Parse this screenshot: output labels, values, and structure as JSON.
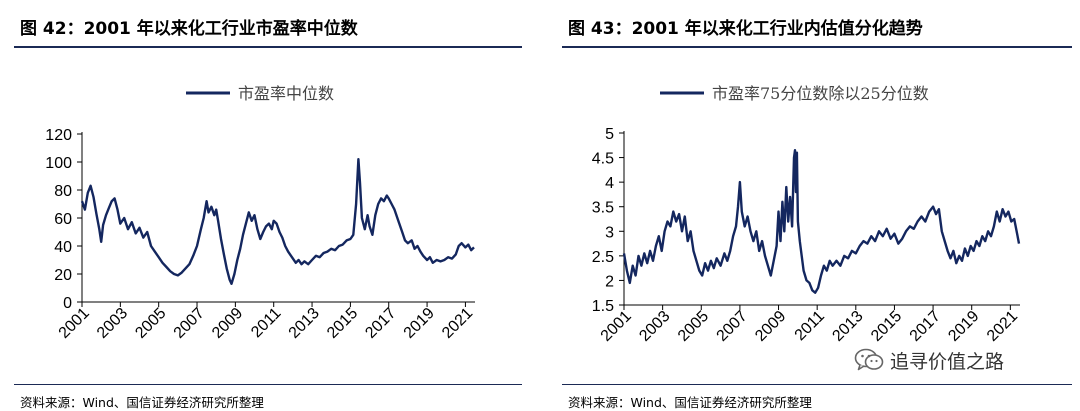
{
  "colors": {
    "series": "#14275f",
    "axis": "#000000",
    "rule": "#1b2a55"
  },
  "watermark": {
    "text": "追寻价值之路",
    "icon": "wechat-icon"
  },
  "chart_data": [
    {
      "type": "line",
      "title": "图 42：2001 年以来化工行业市盈率中位数",
      "source": "资料来源：Wind、国信证券经济研究所整理",
      "xlabel": "",
      "ylabel": "",
      "legend": "top-center",
      "grid": false,
      "xlim": [
        2001,
        2021.5
      ],
      "x_ticks": [
        "2001",
        "2003",
        "2005",
        "2007",
        "2009",
        "2011",
        "2013",
        "2015",
        "2017",
        "2019",
        "2021"
      ],
      "ylim": [
        0,
        120
      ],
      "y_ticks": [
        "0",
        "20",
        "40",
        "60",
        "80",
        "100",
        "120"
      ],
      "series": [
        {
          "name": "市盈率中位数",
          "points": [
            [
              2001.0,
              72
            ],
            [
              2001.15,
              66
            ],
            [
              2001.3,
              78
            ],
            [
              2001.45,
              83
            ],
            [
              2001.6,
              75
            ],
            [
              2001.75,
              63
            ],
            [
              2001.9,
              52
            ],
            [
              2002.0,
              43
            ],
            [
              2002.1,
              55
            ],
            [
              2002.25,
              62
            ],
            [
              2002.4,
              67
            ],
            [
              2002.55,
              72
            ],
            [
              2002.7,
              74
            ],
            [
              2002.85,
              66
            ],
            [
              2003.0,
              56
            ],
            [
              2003.2,
              60
            ],
            [
              2003.4,
              52
            ],
            [
              2003.6,
              57
            ],
            [
              2003.8,
              49
            ],
            [
              2004.0,
              53
            ],
            [
              2004.2,
              46
            ],
            [
              2004.4,
              50
            ],
            [
              2004.6,
              40
            ],
            [
              2004.8,
              36
            ],
            [
              2005.0,
              32
            ],
            [
              2005.2,
              28
            ],
            [
              2005.4,
              25
            ],
            [
              2005.6,
              22
            ],
            [
              2005.8,
              20
            ],
            [
              2006.0,
              19
            ],
            [
              2006.2,
              21
            ],
            [
              2006.4,
              24
            ],
            [
              2006.6,
              27
            ],
            [
              2006.8,
              33
            ],
            [
              2007.0,
              40
            ],
            [
              2007.2,
              52
            ],
            [
              2007.35,
              60
            ],
            [
              2007.5,
              72
            ],
            [
              2007.6,
              64
            ],
            [
              2007.75,
              68
            ],
            [
              2007.9,
              62
            ],
            [
              2008.0,
              66
            ],
            [
              2008.1,
              58
            ],
            [
              2008.25,
              45
            ],
            [
              2008.4,
              34
            ],
            [
              2008.55,
              24
            ],
            [
              2008.7,
              16
            ],
            [
              2008.8,
              13
            ],
            [
              2008.95,
              20
            ],
            [
              2009.1,
              30
            ],
            [
              2009.25,
              38
            ],
            [
              2009.4,
              48
            ],
            [
              2009.55,
              56
            ],
            [
              2009.7,
              64
            ],
            [
              2009.85,
              58
            ],
            [
              2010.0,
              62
            ],
            [
              2010.15,
              52
            ],
            [
              2010.3,
              45
            ],
            [
              2010.45,
              50
            ],
            [
              2010.6,
              54
            ],
            [
              2010.75,
              56
            ],
            [
              2010.9,
              52
            ],
            [
              2011.0,
              58
            ],
            [
              2011.15,
              56
            ],
            [
              2011.3,
              50
            ],
            [
              2011.45,
              46
            ],
            [
              2011.6,
              40
            ],
            [
              2011.75,
              36
            ],
            [
              2011.9,
              33
            ],
            [
              2012.0,
              31
            ],
            [
              2012.15,
              28
            ],
            [
              2012.3,
              30
            ],
            [
              2012.45,
              27
            ],
            [
              2012.6,
              29
            ],
            [
              2012.8,
              27
            ],
            [
              2013.0,
              30
            ],
            [
              2013.2,
              33
            ],
            [
              2013.4,
              32
            ],
            [
              2013.6,
              35
            ],
            [
              2013.8,
              36
            ],
            [
              2014.0,
              38
            ],
            [
              2014.2,
              37
            ],
            [
              2014.4,
              40
            ],
            [
              2014.6,
              41
            ],
            [
              2014.8,
              44
            ],
            [
              2015.0,
              45
            ],
            [
              2015.15,
              48
            ],
            [
              2015.3,
              70
            ],
            [
              2015.42,
              102
            ],
            [
              2015.5,
              85
            ],
            [
              2015.6,
              60
            ],
            [
              2015.75,
              52
            ],
            [
              2015.9,
              62
            ],
            [
              2016.0,
              54
            ],
            [
              2016.15,
              48
            ],
            [
              2016.3,
              62
            ],
            [
              2016.45,
              70
            ],
            [
              2016.6,
              74
            ],
            [
              2016.75,
              72
            ],
            [
              2016.9,
              76
            ],
            [
              2017.0,
              74
            ],
            [
              2017.15,
              70
            ],
            [
              2017.3,
              66
            ],
            [
              2017.5,
              58
            ],
            [
              2017.7,
              50
            ],
            [
              2017.85,
              44
            ],
            [
              2018.0,
              42
            ],
            [
              2018.2,
              44
            ],
            [
              2018.35,
              38
            ],
            [
              2018.5,
              40
            ],
            [
              2018.65,
              36
            ],
            [
              2018.8,
              33
            ],
            [
              2019.0,
              30
            ],
            [
              2019.15,
              32
            ],
            [
              2019.3,
              28
            ],
            [
              2019.5,
              30
            ],
            [
              2019.7,
              29
            ],
            [
              2019.9,
              30
            ],
            [
              2020.1,
              32
            ],
            [
              2020.3,
              31
            ],
            [
              2020.5,
              34
            ],
            [
              2020.65,
              40
            ],
            [
              2020.8,
              42
            ],
            [
              2021.0,
              39
            ],
            [
              2021.15,
              41
            ],
            [
              2021.3,
              37
            ],
            [
              2021.45,
              39
            ]
          ]
        }
      ]
    },
    {
      "type": "line",
      "title": "图 43：2001 年以来化工行业内估值分化趋势",
      "source": "资料来源：Wind、国信证券经济研究所整理",
      "xlabel": "",
      "ylabel": "",
      "legend": "top-center",
      "grid": false,
      "xlim": [
        2001,
        2021.5
      ],
      "x_ticks": [
        "2001",
        "2003",
        "2005",
        "2007",
        "2009",
        "2011",
        "2013",
        "2015",
        "2017",
        "2019",
        "2021"
      ],
      "ylim": [
        1.5,
        5
      ],
      "y_ticks": [
        "1.5",
        "2",
        "2.5",
        "3",
        "3.5",
        "4",
        "4.5",
        "5"
      ],
      "series": [
        {
          "name": "市盈率75分位数除以25分位数",
          "points": [
            [
              2001.0,
              2.55
            ],
            [
              2001.15,
              2.2
            ],
            [
              2001.3,
              1.95
            ],
            [
              2001.45,
              2.3
            ],
            [
              2001.6,
              2.1
            ],
            [
              2001.75,
              2.5
            ],
            [
              2001.9,
              2.3
            ],
            [
              2002.05,
              2.55
            ],
            [
              2002.2,
              2.35
            ],
            [
              2002.35,
              2.6
            ],
            [
              2002.5,
              2.4
            ],
            [
              2002.65,
              2.7
            ],
            [
              2002.8,
              2.9
            ],
            [
              2002.95,
              2.6
            ],
            [
              2003.1,
              3.0
            ],
            [
              2003.25,
              3.2
            ],
            [
              2003.4,
              3.1
            ],
            [
              2003.55,
              3.4
            ],
            [
              2003.7,
              3.2
            ],
            [
              2003.85,
              3.35
            ],
            [
              2004.0,
              3.0
            ],
            [
              2004.15,
              3.3
            ],
            [
              2004.3,
              2.8
            ],
            [
              2004.45,
              3.0
            ],
            [
              2004.6,
              2.6
            ],
            [
              2004.75,
              2.4
            ],
            [
              2004.9,
              2.2
            ],
            [
              2005.05,
              2.1
            ],
            [
              2005.2,
              2.35
            ],
            [
              2005.35,
              2.2
            ],
            [
              2005.5,
              2.4
            ],
            [
              2005.65,
              2.25
            ],
            [
              2005.8,
              2.45
            ],
            [
              2006.0,
              2.3
            ],
            [
              2006.2,
              2.55
            ],
            [
              2006.35,
              2.4
            ],
            [
              2006.5,
              2.6
            ],
            [
              2006.65,
              2.9
            ],
            [
              2006.8,
              3.1
            ],
            [
              2006.9,
              3.5
            ],
            [
              2007.0,
              4.0
            ],
            [
              2007.1,
              3.4
            ],
            [
              2007.25,
              3.1
            ],
            [
              2007.4,
              3.3
            ],
            [
              2007.55,
              3.0
            ],
            [
              2007.7,
              2.8
            ],
            [
              2007.85,
              3.0
            ],
            [
              2008.0,
              2.6
            ],
            [
              2008.15,
              2.8
            ],
            [
              2008.3,
              2.5
            ],
            [
              2008.45,
              2.3
            ],
            [
              2008.6,
              2.1
            ],
            [
              2008.75,
              2.4
            ],
            [
              2008.9,
              2.7
            ],
            [
              2009.0,
              3.4
            ],
            [
              2009.1,
              2.8
            ],
            [
              2009.2,
              3.6
            ],
            [
              2009.3,
              3.0
            ],
            [
              2009.4,
              3.9
            ],
            [
              2009.5,
              3.2
            ],
            [
              2009.6,
              3.7
            ],
            [
              2009.7,
              3.1
            ],
            [
              2009.8,
              4.5
            ],
            [
              2009.85,
              4.65
            ],
            [
              2009.9,
              3.8
            ],
            [
              2009.95,
              4.6
            ],
            [
              2010.0,
              3.2
            ],
            [
              2010.1,
              2.8
            ],
            [
              2010.2,
              2.5
            ],
            [
              2010.3,
              2.2
            ],
            [
              2010.45,
              2.0
            ],
            [
              2010.6,
              1.95
            ],
            [
              2010.75,
              1.8
            ],
            [
              2010.9,
              1.75
            ],
            [
              2011.05,
              1.85
            ],
            [
              2011.2,
              2.1
            ],
            [
              2011.35,
              2.3
            ],
            [
              2011.5,
              2.2
            ],
            [
              2011.65,
              2.4
            ],
            [
              2011.8,
              2.3
            ],
            [
              2012.0,
              2.4
            ],
            [
              2012.2,
              2.3
            ],
            [
              2012.4,
              2.5
            ],
            [
              2012.6,
              2.45
            ],
            [
              2012.8,
              2.6
            ],
            [
              2013.0,
              2.55
            ],
            [
              2013.2,
              2.7
            ],
            [
              2013.4,
              2.8
            ],
            [
              2013.6,
              2.75
            ],
            [
              2013.8,
              2.9
            ],
            [
              2014.0,
              2.8
            ],
            [
              2014.2,
              3.0
            ],
            [
              2014.4,
              2.9
            ],
            [
              2014.6,
              3.05
            ],
            [
              2014.8,
              2.85
            ],
            [
              2015.0,
              2.95
            ],
            [
              2015.2,
              2.75
            ],
            [
              2015.4,
              2.85
            ],
            [
              2015.6,
              3.0
            ],
            [
              2015.8,
              3.1
            ],
            [
              2016.0,
              3.05
            ],
            [
              2016.2,
              3.2
            ],
            [
              2016.4,
              3.3
            ],
            [
              2016.6,
              3.2
            ],
            [
              2016.8,
              3.4
            ],
            [
              2017.0,
              3.5
            ],
            [
              2017.15,
              3.35
            ],
            [
              2017.3,
              3.45
            ],
            [
              2017.45,
              3.0
            ],
            [
              2017.6,
              2.8
            ],
            [
              2017.75,
              2.6
            ],
            [
              2017.9,
              2.45
            ],
            [
              2018.05,
              2.6
            ],
            [
              2018.2,
              2.35
            ],
            [
              2018.35,
              2.5
            ],
            [
              2018.5,
              2.4
            ],
            [
              2018.65,
              2.65
            ],
            [
              2018.8,
              2.5
            ],
            [
              2018.95,
              2.7
            ],
            [
              2019.1,
              2.6
            ],
            [
              2019.25,
              2.8
            ],
            [
              2019.4,
              2.7
            ],
            [
              2019.55,
              2.9
            ],
            [
              2019.7,
              2.8
            ],
            [
              2019.85,
              3.0
            ],
            [
              2020.0,
              2.9
            ],
            [
              2020.15,
              3.1
            ],
            [
              2020.3,
              3.4
            ],
            [
              2020.45,
              3.2
            ],
            [
              2020.6,
              3.45
            ],
            [
              2020.75,
              3.3
            ],
            [
              2020.9,
              3.4
            ],
            [
              2021.05,
              3.2
            ],
            [
              2021.2,
              3.25
            ],
            [
              2021.35,
              2.95
            ],
            [
              2021.45,
              2.75
            ]
          ]
        }
      ]
    }
  ]
}
